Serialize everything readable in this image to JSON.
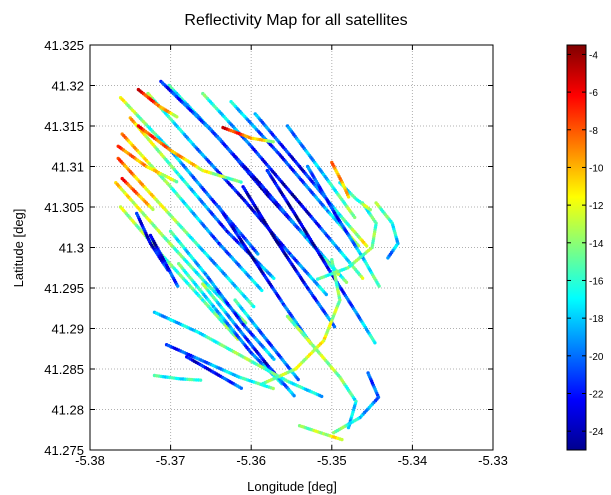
{
  "chart_data": {
    "type": "scatter",
    "title": "Reflectivity Map for all satellites",
    "xlabel": "Longitude [deg]",
    "ylabel": "Latitude [deg]",
    "xlim": [
      -5.38,
      -5.33
    ],
    "ylim": [
      41.275,
      41.325
    ],
    "xticks": [
      "-5.38",
      "-5.37",
      "-5.36",
      "-5.35",
      "-5.34",
      "-5.33"
    ],
    "yticks": [
      "41.275",
      "41.28",
      "41.285",
      "41.29",
      "41.295",
      "41.3",
      "41.305",
      "41.31",
      "41.315",
      "41.32",
      "41.325"
    ],
    "grid": true,
    "colorbar": {
      "range": [
        -25,
        -3.5
      ],
      "ticks": [
        "-4",
        "-6",
        "-8",
        "-10",
        "-12",
        "-14",
        "-16",
        "-18",
        "-20",
        "-22",
        "-24"
      ],
      "colormap": "jet",
      "placement": "right"
    },
    "tracks": [
      {
        "points": [
          [
            -5.3762,
            41.3185
          ],
          [
            -5.37,
            41.312
          ],
          [
            -5.3645,
            41.3055
          ],
          [
            -5.359,
            41.299
          ]
        ],
        "values": [
          -12,
          -18,
          -21,
          -20
        ]
      },
      {
        "points": [
          [
            -5.375,
            41.316
          ],
          [
            -5.369,
            41.309
          ],
          [
            -5.363,
            41.302
          ],
          [
            -5.357,
            41.296
          ]
        ],
        "values": [
          -10,
          -16,
          -22,
          -18
        ]
      },
      {
        "points": [
          [
            -5.376,
            41.314
          ],
          [
            -5.37,
            41.3075
          ],
          [
            -5.364,
            41.3005
          ],
          [
            -5.3585,
            41.2945
          ]
        ],
        "values": [
          -9,
          -15,
          -21,
          -17
        ]
      },
      {
        "points": [
          [
            -5.3765,
            41.311
          ],
          [
            -5.3705,
            41.3045
          ],
          [
            -5.3645,
            41.298
          ],
          [
            -5.3595,
            41.2925
          ]
        ],
        "values": [
          -8,
          -13,
          -19,
          -16
        ]
      },
      {
        "points": [
          [
            -5.3768,
            41.308
          ],
          [
            -5.371,
            41.3015
          ],
          [
            -5.3655,
            41.2955
          ],
          [
            -5.3605,
            41.2905
          ]
        ],
        "values": [
          -11,
          -14,
          -17,
          -15
        ]
      },
      {
        "points": [
          [
            -5.3762,
            41.305
          ],
          [
            -5.371,
            41.299
          ],
          [
            -5.366,
            41.2935
          ],
          [
            -5.3615,
            41.2885
          ]
        ],
        "values": [
          -13,
          -15,
          -16,
          -14
        ]
      },
      {
        "points": [
          [
            -5.3728,
            41.319
          ],
          [
            -5.367,
            41.3125
          ],
          [
            -5.361,
            41.306
          ],
          [
            -5.355,
            41.299
          ],
          [
            -5.3505,
            41.294
          ]
        ],
        "values": [
          -14,
          -19,
          -23,
          -21,
          -17
        ]
      },
      {
        "points": [
          [
            -5.3702,
            41.32
          ],
          [
            -5.364,
            41.3135
          ],
          [
            -5.358,
            41.3065
          ],
          [
            -5.352,
            41.3
          ],
          [
            -5.348,
            41.2955
          ]
        ],
        "values": [
          -16,
          -20,
          -24,
          -20,
          -15
        ]
      },
      {
        "points": [
          [
            -5.3712,
            41.3205
          ],
          [
            -5.365,
            41.3145
          ],
          [
            -5.359,
            41.308
          ],
          [
            -5.353,
            41.301
          ],
          [
            -5.349,
            41.2965
          ]
        ],
        "values": [
          -22,
          -20,
          -23,
          -19,
          -14
        ]
      },
      {
        "points": [
          [
            -5.366,
            41.319
          ],
          [
            -5.36,
            41.3125
          ],
          [
            -5.354,
            41.3055
          ],
          [
            -5.3485,
            41.299
          ],
          [
            -5.346,
            41.296
          ]
        ],
        "values": [
          -15,
          -21,
          -24,
          -18,
          -13
        ]
      },
      {
        "points": [
          [
            -5.3625,
            41.318
          ],
          [
            -5.3565,
            41.3115
          ],
          [
            -5.3505,
            41.3045
          ],
          [
            -5.3465,
            41.3
          ]
        ],
        "values": [
          -17,
          -22,
          -19,
          -12
        ]
      },
      {
        "points": [
          [
            -5.3595,
            41.3165
          ],
          [
            -5.354,
            41.31
          ],
          [
            -5.349,
            41.304
          ],
          [
            -5.3455,
            41.3
          ]
        ],
        "values": [
          -19,
          -23,
          -17,
          -11
        ]
      },
      {
        "points": [
          [
            -5.3555,
            41.315
          ],
          [
            -5.351,
            41.309
          ],
          [
            -5.347,
            41.3035
          ]
        ],
        "values": [
          -20,
          -18,
          -13
        ]
      },
      {
        "points": [
          [
            -5.37,
            41.302
          ],
          [
            -5.3655,
            41.2965
          ],
          [
            -5.361,
            41.2905
          ],
          [
            -5.357,
            41.286
          ]
        ],
        "values": [
          -16,
          -19,
          -22,
          -17
        ]
      },
      {
        "points": [
          [
            -5.369,
            41.298
          ],
          [
            -5.3645,
            41.2925
          ],
          [
            -5.36,
            41.287
          ],
          [
            -5.356,
            41.283
          ]
        ],
        "values": [
          -15,
          -18,
          -21,
          -16
        ]
      },
      {
        "points": [
          [
            -5.366,
            41.2955
          ],
          [
            -5.362,
            41.2905
          ],
          [
            -5.358,
            41.2855
          ],
          [
            -5.3545,
            41.2815
          ]
        ],
        "values": [
          -14,
          -20,
          -23,
          -18
        ]
      },
      {
        "points": [
          [
            -5.362,
            41.2935
          ],
          [
            -5.358,
            41.2885
          ],
          [
            -5.354,
            41.2835
          ]
        ],
        "values": [
          -16,
          -21,
          -19
        ]
      },
      {
        "points": [
          [
            -5.358,
            41.3095
          ],
          [
            -5.3545,
            41.304
          ],
          [
            -5.3505,
            41.2975
          ],
          [
            -5.347,
            41.292
          ],
          [
            -5.3445,
            41.288
          ]
        ],
        "values": [
          -22,
          -24,
          -23,
          -20,
          -16
        ]
      },
      {
        "points": [
          [
            -5.361,
            41.3075
          ],
          [
            -5.357,
            41.301
          ],
          [
            -5.353,
            41.295
          ],
          [
            -5.3495,
            41.29
          ]
        ],
        "values": [
          -23,
          -24,
          -22,
          -19
        ]
      },
      {
        "points": [
          [
            -5.364,
            41.305
          ],
          [
            -5.36,
            41.299
          ],
          [
            -5.356,
            41.293
          ],
          [
            -5.3525,
            41.288
          ]
        ],
        "values": [
          -21,
          -24,
          -21,
          -18
        ]
      },
      {
        "points": [
          [
            -5.353,
            41.31
          ],
          [
            -5.3495,
            41.304
          ],
          [
            -5.346,
            41.2985
          ],
          [
            -5.344,
            41.295
          ]
        ],
        "values": [
          -20,
          -22,
          -18,
          -14
        ]
      },
      {
        "points": [
          [
            -5.372,
            41.292
          ],
          [
            -5.3665,
            41.2895
          ],
          [
            -5.361,
            41.2865
          ],
          [
            -5.3555,
            41.2835
          ],
          [
            -5.351,
            41.2815
          ]
        ],
        "values": [
          -19,
          -17,
          -14,
          -16,
          -18
        ]
      },
      {
        "points": [
          [
            -5.3705,
            41.288
          ],
          [
            -5.366,
            41.286
          ],
          [
            -5.3615,
            41.284
          ],
          [
            -5.357,
            41.2825
          ]
        ],
        "values": [
          -22,
          -20,
          -17,
          -15
        ]
      },
      {
        "points": [
          [
            -5.368,
            41.2865
          ],
          [
            -5.3645,
            41.2845
          ],
          [
            -5.361,
            41.2825
          ]
        ],
        "values": [
          -23,
          -22,
          -20
        ]
      },
      {
        "points": [
          [
            -5.372,
            41.2842
          ],
          [
            -5.369,
            41.2838
          ],
          [
            -5.366,
            41.2836
          ]
        ],
        "values": [
          -16,
          -17,
          -15
        ]
      },
      {
        "points": [
          [
            -5.35,
            41.2985
          ],
          [
            -5.349,
            41.2935
          ],
          [
            -5.351,
            41.2885
          ],
          [
            -5.3545,
            41.285
          ],
          [
            -5.359,
            41.283
          ]
        ],
        "values": [
          -16,
          -14,
          -12,
          -13,
          -15
        ]
      },
      {
        "points": [
          [
            -5.3555,
            41.2915
          ],
          [
            -5.352,
            41.2875
          ],
          [
            -5.349,
            41.284
          ],
          [
            -5.347,
            41.281
          ],
          [
            -5.348,
            41.2775
          ]
        ],
        "values": [
          -15,
          -13,
          -14,
          -17,
          -19
        ]
      },
      {
        "points": [
          [
            -5.3455,
            41.2845
          ],
          [
            -5.3442,
            41.2815
          ],
          [
            -5.3465,
            41.279
          ],
          [
            -5.35,
            41.277
          ]
        ],
        "values": [
          -21,
          -20,
          -18,
          -13
        ]
      },
      {
        "points": [
          [
            -5.354,
            41.278
          ],
          [
            -5.351,
            41.277
          ],
          [
            -5.3485,
            41.2762
          ]
        ],
        "values": [
          -15,
          -13,
          -11
        ]
      },
      {
        "points": [
          [
            -5.3462,
            41.3055
          ],
          [
            -5.3445,
            41.303
          ],
          [
            -5.345,
            41.3
          ],
          [
            -5.348,
            41.2975
          ],
          [
            -5.352,
            41.296
          ]
        ],
        "values": [
          -17,
          -15,
          -14,
          -15,
          -16
        ]
      },
      {
        "points": [
          [
            -5.3445,
            41.3055
          ],
          [
            -5.3425,
            41.303
          ],
          [
            -5.3418,
            41.3005
          ],
          [
            -5.3432,
            41.2985
          ]
        ],
        "values": [
          -14,
          -16,
          -18,
          -20
        ]
      },
      {
        "points": [
          [
            -5.349,
            41.308
          ],
          [
            -5.347,
            41.306
          ],
          [
            -5.345,
            41.3045
          ]
        ],
        "values": [
          -18,
          -16,
          -12
        ]
      },
      {
        "points": [
          [
            -5.35,
            41.3105
          ],
          [
            -5.3487,
            41.308
          ],
          [
            -5.3478,
            41.306
          ]
        ],
        "values": [
          -9,
          -10,
          -11
        ]
      },
      {
        "points": [
          [
            -5.374,
            41.315
          ],
          [
            -5.37,
            41.312
          ],
          [
            -5.366,
            41.3095
          ],
          [
            -5.361,
            41.308
          ]
        ],
        "values": [
          -7,
          -9,
          -12,
          -16
        ]
      },
      {
        "points": [
          [
            -5.3765,
            41.3125
          ],
          [
            -5.373,
            41.31
          ],
          [
            -5.369,
            41.308
          ]
        ],
        "values": [
          -8,
          -10,
          -14
        ]
      },
      {
        "points": [
          [
            -5.376,
            41.3085
          ],
          [
            -5.374,
            41.3065
          ],
          [
            -5.372,
            41.3045
          ]
        ],
        "values": [
          -7,
          -9,
          -12
        ]
      },
      {
        "points": [
          [
            -5.374,
            41.3195
          ],
          [
            -5.3715,
            41.3175
          ],
          [
            -5.369,
            41.316
          ]
        ],
        "values": [
          -6,
          -8,
          -13
        ]
      },
      {
        "points": [
          [
            -5.3742,
            41.3042
          ],
          [
            -5.3725,
            41.3005
          ],
          [
            -5.3702,
            41.297
          ]
        ],
        "values": [
          -22,
          -23,
          -21
        ]
      },
      {
        "points": [
          [
            -5.3725,
            41.3015
          ],
          [
            -5.3705,
            41.2978
          ],
          [
            -5.369,
            41.295
          ]
        ],
        "values": [
          -24,
          -22,
          -20
        ]
      },
      {
        "points": [
          [
            -5.3635,
            41.3148
          ],
          [
            -5.36,
            41.3135
          ],
          [
            -5.357,
            41.313
          ]
        ],
        "values": [
          -6,
          -9,
          -14
        ]
      }
    ]
  }
}
